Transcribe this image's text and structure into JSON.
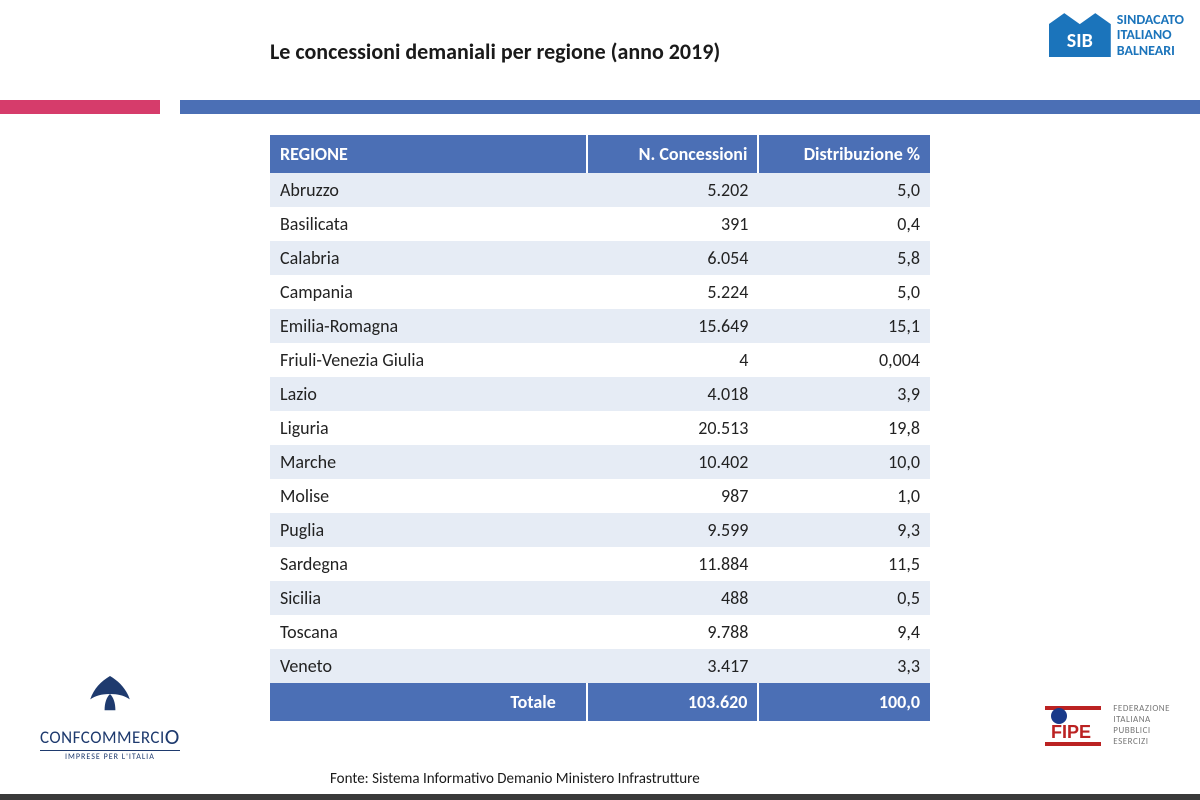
{
  "title": "Le concessioni demaniali per regione (anno 2019)",
  "brand_sib": {
    "badge": "SIB",
    "line1": "SINDACATO",
    "line2": "ITALIANO",
    "line3": "BALNEARI"
  },
  "colors": {
    "header_blue": "#4b6fb5",
    "stripe_pink": "#d63c6b",
    "sib_blue": "#1b74bb",
    "row_alt": "#e6ecf5",
    "conf_blue": "#1e3a6e"
  },
  "table": {
    "columns": [
      "REGIONE",
      "N. Concessioni",
      "Distribuzione %"
    ],
    "rows": [
      [
        "Abruzzo",
        "5.202",
        "5,0"
      ],
      [
        "Basilicata",
        "391",
        "0,4"
      ],
      [
        "Calabria",
        "6.054",
        "5,8"
      ],
      [
        "Campania",
        "5.224",
        "5,0"
      ],
      [
        "Emilia-Romagna",
        "15.649",
        "15,1"
      ],
      [
        "Friuli-Venezia Giulia",
        "4",
        "0,004"
      ],
      [
        "Lazio",
        "4.018",
        "3,9"
      ],
      [
        "Liguria",
        "20.513",
        "19,8"
      ],
      [
        "Marche",
        "10.402",
        "10,0"
      ],
      [
        "Molise",
        "987",
        "1,0"
      ],
      [
        "Puglia",
        "9.599",
        "9,3"
      ],
      [
        "Sardegna",
        "11.884",
        "11,5"
      ],
      [
        "Sicilia",
        "488",
        "0,5"
      ],
      [
        "Toscana",
        "9.788",
        "9,4"
      ],
      [
        "Veneto",
        "3.417",
        "3,3"
      ]
    ],
    "total": [
      "Totale",
      "103.620",
      "100,0"
    ]
  },
  "source": "Fonte: Sistema Informativo Demanio Ministero Infrastrutture",
  "conf": {
    "name_pre": "CONFCOMMERCI",
    "name_o": "O",
    "sub": "IMPRESE PER L'ITALIA"
  },
  "fipe": {
    "label": "FIPE",
    "line1": "FEDERAZIONE",
    "line2": "ITALIANA",
    "line3": "PUBBLICI",
    "line4": "ESERCIZI"
  }
}
